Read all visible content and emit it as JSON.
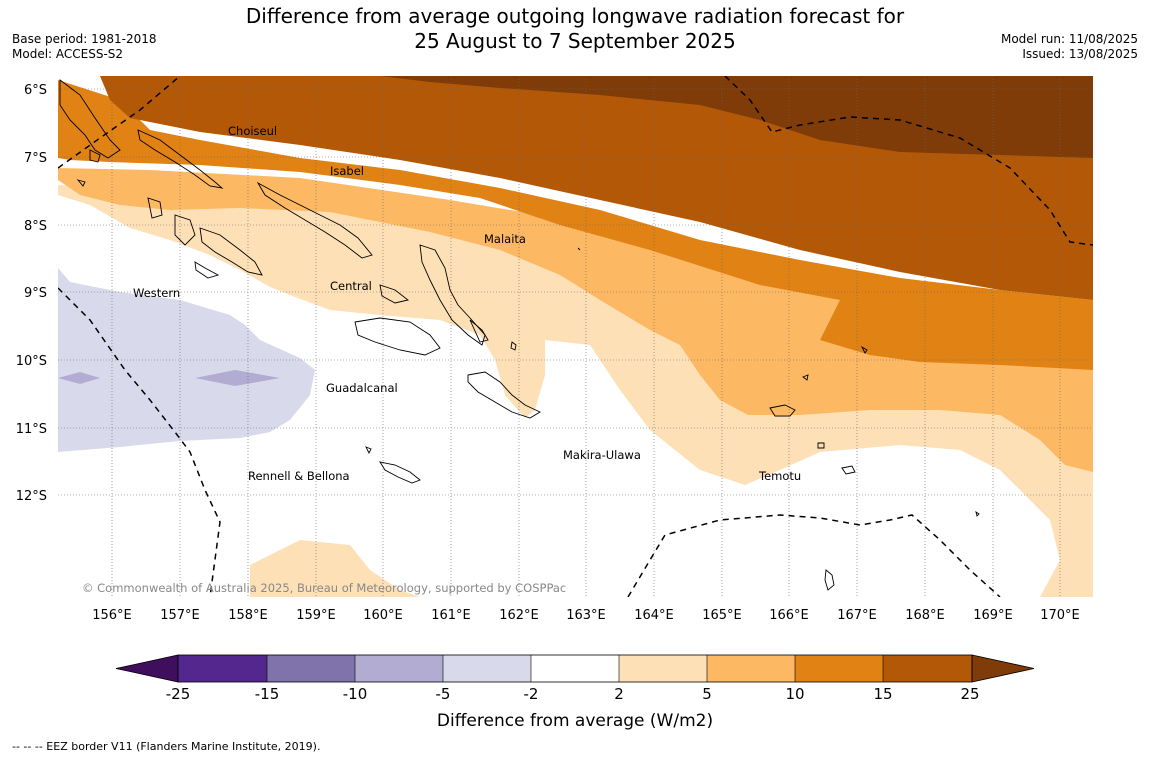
{
  "title": {
    "line1": "Difference from average outgoing longwave radiation forecast for",
    "line2": "25 August to 7 September 2025"
  },
  "meta": {
    "base_period": "Base period: 1981-2018",
    "model": "Model: ACCESS-S2",
    "model_run": "Model run: 11/08/2025",
    "issued": "Issued: 13/08/2025"
  },
  "map": {
    "lat_labels": [
      "6°S",
      "7°S",
      "8°S",
      "9°S",
      "10°S",
      "11°S",
      "12°S"
    ],
    "lon_labels": [
      "156°E",
      "157°E",
      "158°E",
      "159°E",
      "160°E",
      "161°E",
      "162°E",
      "163°E",
      "164°E",
      "165°E",
      "166°E",
      "167°E",
      "168°E",
      "169°E",
      "170°E"
    ],
    "places": {
      "choiseul": "Choiseul",
      "isabel": "Isabel",
      "malaita": "Malaita",
      "western": "Western",
      "central": "Central",
      "guadalcanal": "Guadalcanal",
      "makira": "Makira-Ulawa",
      "rennell": "Rennell & Bellona",
      "temotu": "Temotu"
    },
    "copyright": "© Commonwealth of Australia 2025, Bureau of Meteorology, supported by COSPPac"
  },
  "colorbar": {
    "ticks": [
      "-25",
      "-15",
      "-10",
      "-5",
      "-2",
      "2",
      "5",
      "10",
      "15",
      "25"
    ],
    "colors": [
      "#3f0f5e",
      "#54278f",
      "#8073ac",
      "#b2abd2",
      "#d8daeb",
      "#ffffff",
      "#fee0b6",
      "#fdb863",
      "#e08214",
      "#b35806",
      "#7f3b08"
    ],
    "label": "Difference from average (W/m2)"
  },
  "footnote": "--  --  -- EEZ border V11 (Flanders Marine Institute, 2019)."
}
